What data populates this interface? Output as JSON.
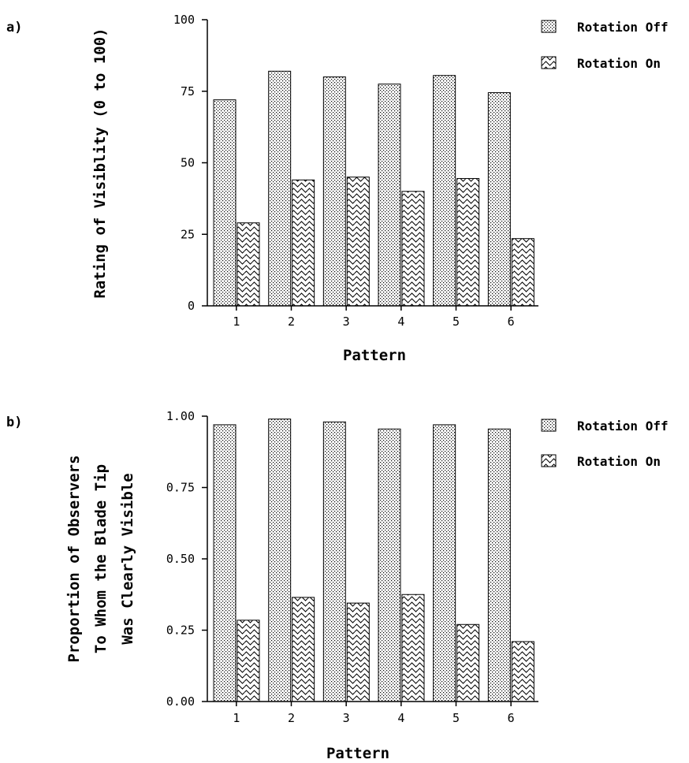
{
  "chart_data": [
    {
      "type": "bar",
      "panel_label": "a)",
      "categories": [
        "1",
        "2",
        "3",
        "4",
        "5",
        "6"
      ],
      "series": [
        {
          "name": "Rotation Off",
          "values": [
            72,
            82,
            80,
            77.5,
            80.5,
            74.5
          ],
          "pattern": "dots"
        },
        {
          "name": "Rotation On",
          "values": [
            29,
            44,
            45,
            40,
            44.5,
            23.5
          ],
          "pattern": "waves"
        }
      ],
      "xlabel": "Pattern",
      "ylabel": [
        "Rating of Visiblity (0 to 100)"
      ],
      "ylim": [
        0,
        100
      ],
      "yticks": [
        0,
        25,
        50,
        75,
        100
      ],
      "ytick_labels": [
        "0",
        "25",
        "50",
        "75",
        "100"
      ],
      "legend_position": "top-right",
      "grid": false
    },
    {
      "type": "bar",
      "panel_label": "b)",
      "categories": [
        "1",
        "2",
        "3",
        "4",
        "5",
        "6"
      ],
      "series": [
        {
          "name": "Rotation Off",
          "values": [
            0.97,
            0.99,
            0.98,
            0.955,
            0.97,
            0.955
          ],
          "pattern": "dots"
        },
        {
          "name": "Rotation On",
          "values": [
            0.285,
            0.365,
            0.345,
            0.375,
            0.27,
            0.21
          ],
          "pattern": "waves"
        }
      ],
      "xlabel": "Pattern",
      "ylabel": [
        "Proportion of Observers",
        "To Whom the Blade Tip",
        "Was Clearly Visible"
      ],
      "ylim": [
        0,
        1
      ],
      "yticks": [
        0,
        0.25,
        0.5,
        0.75,
        1
      ],
      "ytick_labels": [
        "0.00",
        "0.25",
        "0.50",
        "0.75",
        "1.00"
      ],
      "legend_position": "top-right",
      "grid": false
    }
  ],
  "colors": {
    "ink": "#000000",
    "background": "#ffffff",
    "pattern_fill": "#ffffff"
  }
}
